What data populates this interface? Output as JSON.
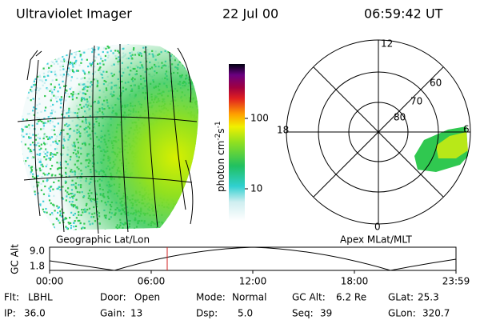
{
  "header": {
    "title": "Ultraviolet Imager",
    "date": "22 Jul 00",
    "time": "06:59:42 UT"
  },
  "colorbar": {
    "unit": {
      "base": "photon cm",
      "exp1": "-2",
      "mid": "s",
      "exp2": "-1"
    },
    "labels": [
      "100",
      "10"
    ]
  },
  "polar": {
    "mlt_labels": [
      "12",
      "18",
      "6",
      "0"
    ],
    "lat_labels": [
      "60",
      "70",
      "80"
    ]
  },
  "panel_titles": {
    "left": "Geographic Lat/Lon",
    "right": "Apex MLat/MLT"
  },
  "altitude_plot": {
    "axis_label": "GC Alt",
    "y_labels": [
      "9.0",
      "1.8"
    ],
    "x_labels": [
      "00:00",
      "06:00",
      "12:00",
      "18:00",
      "23:59"
    ]
  },
  "info": [
    [
      {
        "label": "Flt:",
        "value": "LBHL"
      },
      {
        "label": "Door:",
        "value": "Open"
      },
      {
        "label": "Mode:",
        "value": "Normal"
      },
      {
        "label": "GC Alt:",
        "value": "6.2 Re"
      },
      {
        "label": "GLat:",
        "value": "25.3"
      }
    ],
    [
      {
        "label": "IP:",
        "value": "36.0"
      },
      {
        "label": "Gain:",
        "value": "13"
      },
      {
        "label": "Dsp:",
        "value": "5.0"
      },
      {
        "label": "Seq:",
        "value": "39"
      },
      {
        "label": "GLon:",
        "value": "320.7"
      }
    ]
  ]
}
